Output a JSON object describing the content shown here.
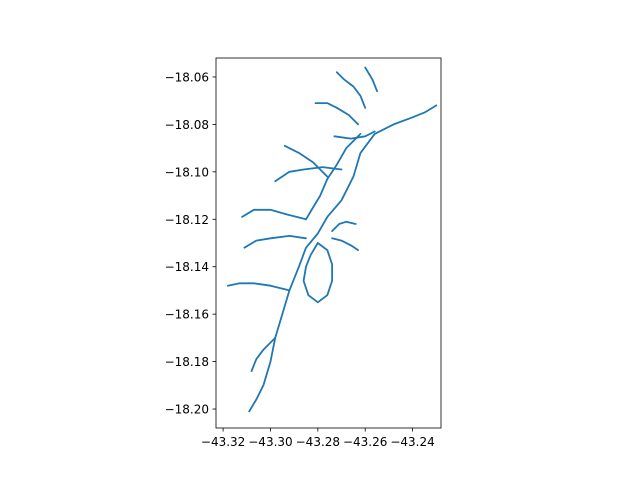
{
  "chart_data": {
    "type": "line",
    "title": "",
    "xlabel": "",
    "ylabel": "",
    "xlim": [
      -43.323,
      -43.228
    ],
    "ylim": [
      -18.208,
      -18.052
    ],
    "grid": false,
    "legend": "none",
    "line_color": "#1f77b4",
    "x_ticks": [
      {
        "value": -43.32,
        "label": "−43.32"
      },
      {
        "value": -43.3,
        "label": "−43.30"
      },
      {
        "value": -43.28,
        "label": "−43.28"
      },
      {
        "value": -43.26,
        "label": "−43.26"
      },
      {
        "value": -43.24,
        "label": "−43.24"
      }
    ],
    "y_ticks": [
      {
        "value": -18.06,
        "label": "−18.06"
      },
      {
        "value": -18.08,
        "label": "−18.08"
      },
      {
        "value": -18.1,
        "label": "−18.10"
      },
      {
        "value": -18.12,
        "label": "−18.12"
      },
      {
        "value": -18.14,
        "label": "−18.14"
      },
      {
        "value": -18.16,
        "label": "−18.16"
      },
      {
        "value": -18.18,
        "label": "−18.18"
      },
      {
        "value": -18.2,
        "label": "−18.20"
      }
    ],
    "series": [
      {
        "x": [
          -43.23,
          -43.235,
          -43.24,
          -43.248,
          -43.256,
          -43.262,
          -43.265,
          -43.27,
          -43.276,
          -43.28,
          -43.285,
          -43.288,
          -43.292,
          -43.295,
          -43.298,
          -43.3,
          -43.303,
          -43.306,
          -43.309
        ],
        "y": [
          -18.072,
          -18.075,
          -18.077,
          -18.08,
          -18.084,
          -18.092,
          -18.102,
          -18.112,
          -18.119,
          -18.126,
          -18.132,
          -18.14,
          -18.15,
          -18.16,
          -18.17,
          -18.18,
          -18.19,
          -18.196,
          -18.201
        ]
      },
      {
        "x": [
          -43.262,
          -43.268,
          -43.272,
          -43.276,
          -43.279,
          -43.282,
          -43.285
        ],
        "y": [
          -18.084,
          -18.09,
          -18.097,
          -18.103,
          -18.11,
          -18.115,
          -18.12
        ]
      },
      {
        "x": [
          -43.27,
          -43.278,
          -43.286,
          -43.292,
          -43.298
        ],
        "y": [
          -18.099,
          -18.098,
          -18.099,
          -18.1,
          -18.104
        ]
      },
      {
        "x": [
          -43.285,
          -43.293,
          -43.3,
          -43.307,
          -43.312
        ],
        "y": [
          -18.12,
          -18.118,
          -18.116,
          -18.116,
          -18.119
        ]
      },
      {
        "x": [
          -43.285,
          -43.292,
          -43.3,
          -43.306,
          -43.311
        ],
        "y": [
          -18.128,
          -18.127,
          -18.128,
          -18.129,
          -18.132
        ]
      },
      {
        "x": [
          -43.292,
          -43.3,
          -43.307,
          -43.313,
          -43.318
        ],
        "y": [
          -18.15,
          -18.148,
          -18.147,
          -18.147,
          -18.148
        ]
      },
      {
        "x": [
          -43.298,
          -43.303,
          -43.306,
          -43.308
        ],
        "y": [
          -18.17,
          -18.175,
          -18.179,
          -18.184
        ]
      },
      {
        "x": [
          -43.28,
          -43.283,
          -43.285,
          -43.286,
          -43.284,
          -43.28,
          -43.276,
          -43.274,
          -43.274,
          -43.276,
          -43.28
        ],
        "y": [
          -18.13,
          -18.135,
          -18.14,
          -18.146,
          -18.152,
          -18.155,
          -18.152,
          -18.146,
          -18.139,
          -18.133,
          -18.13
        ]
      },
      {
        "x": [
          -43.274,
          -43.271,
          -43.268,
          -43.264
        ],
        "y": [
          -18.125,
          -18.122,
          -18.121,
          -18.122
        ]
      },
      {
        "x": [
          -43.274,
          -43.27,
          -43.266,
          -43.263
        ],
        "y": [
          -18.128,
          -18.129,
          -18.131,
          -18.133
        ]
      },
      {
        "x": [
          -43.276,
          -43.282,
          -43.288,
          -43.294
        ],
        "y": [
          -18.102,
          -18.096,
          -18.092,
          -18.089
        ]
      },
      {
        "x": [
          -43.263,
          -43.267,
          -43.272,
          -43.276,
          -43.281
        ],
        "y": [
          -18.08,
          -18.076,
          -18.073,
          -18.071,
          -18.071
        ]
      },
      {
        "x": [
          -43.26,
          -43.262,
          -43.265,
          -43.269,
          -43.272
        ],
        "y": [
          -18.073,
          -18.068,
          -18.064,
          -18.061,
          -18.058
        ]
      },
      {
        "x": [
          -43.255,
          -43.257,
          -43.26
        ],
        "y": [
          -18.066,
          -18.061,
          -18.056
        ]
      },
      {
        "x": [
          -43.256,
          -43.26,
          -43.266,
          -43.273
        ],
        "y": [
          -18.083,
          -18.085,
          -18.086,
          -18.085
        ]
      }
    ]
  }
}
